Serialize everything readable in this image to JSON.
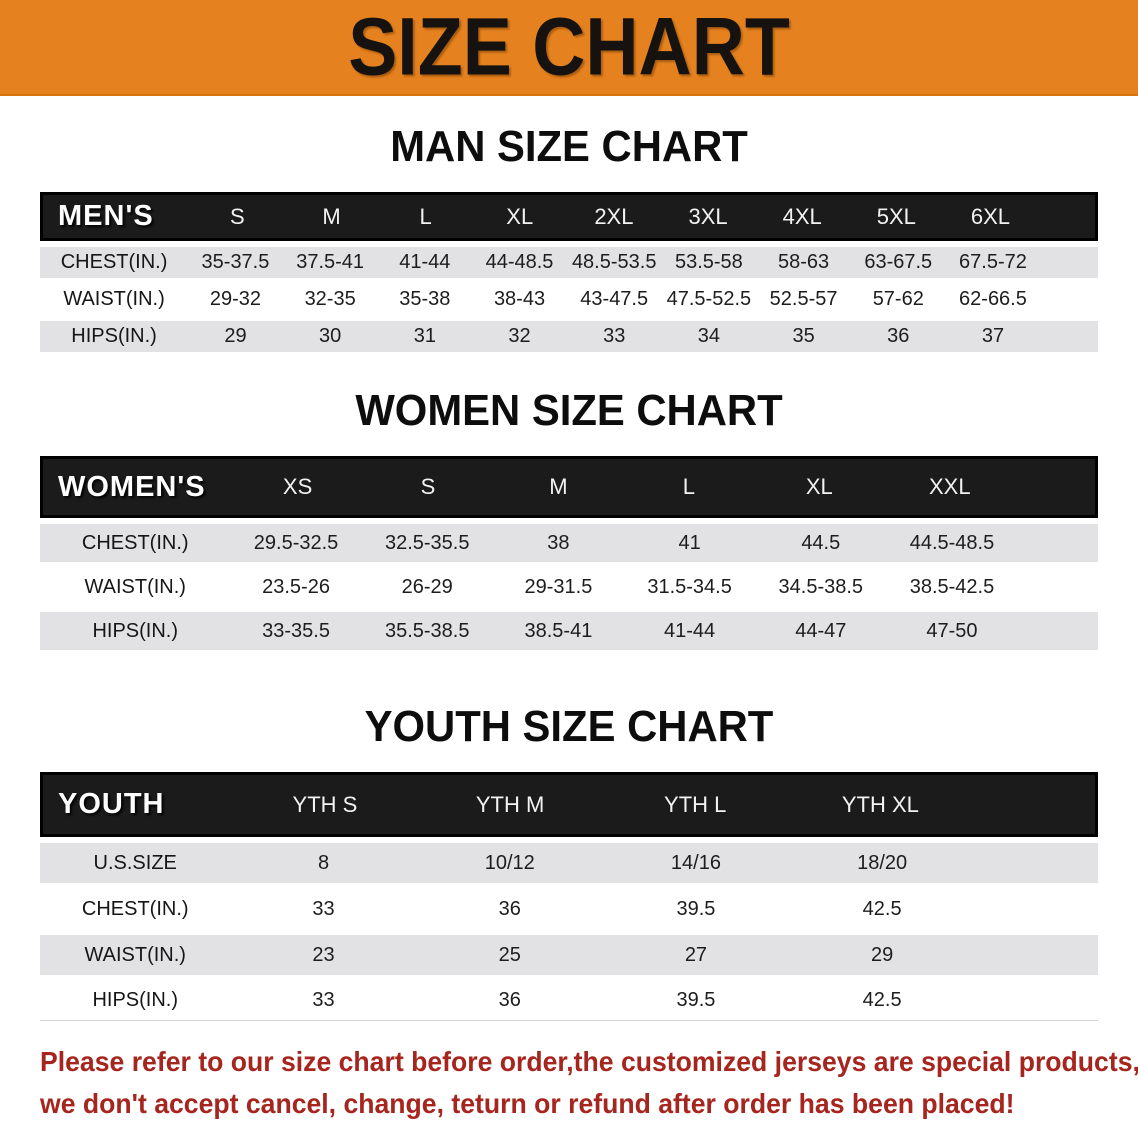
{
  "banner": {
    "title": "SIZE CHART",
    "bg_color": "#E5821F"
  },
  "sections": [
    {
      "id": "mens",
      "heading": "MAN SIZE CHART",
      "table": {
        "group_label": "MEN'S",
        "sizes": [
          "S",
          "M",
          "L",
          "XL",
          "2XL",
          "3XL",
          "4XL",
          "5XL",
          "6XL"
        ],
        "rows": [
          {
            "label": "CHEST(IN.)",
            "values": [
              "35-37.5",
              "37.5-41",
              "41-44",
              "44-48.5",
              "48.5-53.5",
              "53.5-58",
              "58-63",
              "63-67.5",
              "67.5-72"
            ]
          },
          {
            "label": "WAIST(IN.)",
            "values": [
              "29-32",
              "32-35",
              "35-38",
              "38-43",
              "43-47.5",
              "47.5-52.5",
              "52.5-57",
              "57-62",
              "62-66.5"
            ]
          },
          {
            "label": "HIPS(IN.)",
            "values": [
              "29",
              "30",
              "31",
              "32",
              "33",
              "34",
              "35",
              "36",
              "37"
            ]
          }
        ]
      }
    },
    {
      "id": "womens",
      "heading": "WOMEN SIZE CHART",
      "table": {
        "group_label": "WOMEN'S",
        "sizes": [
          "XS",
          "S",
          "M",
          "L",
          "XL",
          "XXL"
        ],
        "rows": [
          {
            "label": "CHEST(IN.)",
            "values": [
              "29.5-32.5",
              "32.5-35.5",
              "38",
              "41",
              "44.5",
              "44.5-48.5"
            ]
          },
          {
            "label": "WAIST(IN.)",
            "values": [
              "23.5-26",
              "26-29",
              "29-31.5",
              "31.5-34.5",
              "34.5-38.5",
              "38.5-42.5"
            ]
          },
          {
            "label": "HIPS(IN.)",
            "values": [
              "33-35.5",
              "35.5-38.5",
              "38.5-41",
              "41-44",
              "44-47",
              "47-50"
            ]
          }
        ]
      }
    },
    {
      "id": "youth",
      "heading": "YOUTH SIZE CHART",
      "table": {
        "group_label": "YOUTH",
        "sizes": [
          "YTH S",
          "YTH M",
          "YTH L",
          "YTH XL"
        ],
        "rows": [
          {
            "label": "U.S.SIZE",
            "values": [
              "8",
              "10/12",
              "14/16",
              "18/20"
            ]
          },
          {
            "label": "CHEST(IN.)",
            "values": [
              "33",
              "36",
              "39.5",
              "42.5"
            ]
          },
          {
            "label": "WAIST(IN.)",
            "values": [
              "23",
              "25",
              "27",
              "29"
            ]
          },
          {
            "label": "HIPS(IN.)",
            "values": [
              "33",
              "36",
              "39.5",
              "42.5"
            ]
          }
        ]
      }
    }
  ],
  "disclaimer": {
    "color": "#A6251E",
    "line1": "Please refer to our size chart before order,the customized jerseys are special products,",
    "line2": "we don't accept cancel, change, teturn or refund after order has been placed!"
  }
}
